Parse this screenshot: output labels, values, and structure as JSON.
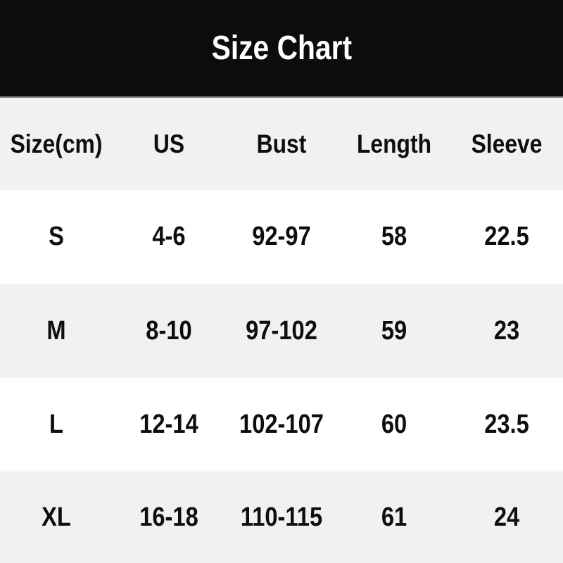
{
  "title": "Size Chart",
  "colors": {
    "title_band": "#0c0c0c",
    "title_text": "#ffffff",
    "separator_line": "#8a8a8a",
    "row_gray": "#f0f1f1",
    "row_white": "#ffffff",
    "table_text": "#0e0e0e"
  },
  "chart_data": {
    "type": "table",
    "title": "Size Chart",
    "columns": [
      "Size(cm)",
      "US",
      "Bust",
      "Length",
      "Sleeve"
    ],
    "rows": [
      [
        "S",
        "4-6",
        "92-97",
        "58",
        "22.5"
      ],
      [
        "M",
        "8-10",
        "97-102",
        "59",
        "23"
      ],
      [
        "L",
        "12-14",
        "102-107",
        "60",
        "23.5"
      ],
      [
        "XL",
        "16-18",
        "110-115",
        "61",
        "24"
      ]
    ],
    "layout": {
      "header_band": "black bar with white centered title",
      "row_striping": [
        "gray header row",
        "white",
        "gray",
        "white",
        "gray"
      ],
      "text_alignment": "center"
    }
  }
}
